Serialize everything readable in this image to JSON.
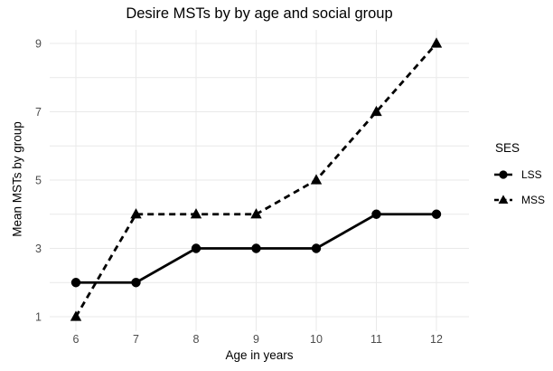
{
  "chart_data": {
    "type": "line",
    "title": "Desire MSTs by by age and social group",
    "xlabel": "Age in years",
    "ylabel": "Mean MSTs by group",
    "legend_title": "SES",
    "legend_position": "right",
    "x": [
      6,
      7,
      8,
      9,
      10,
      11,
      12
    ],
    "series": [
      {
        "name": "LSS",
        "values": [
          2,
          2,
          3,
          3,
          3,
          4,
          4
        ],
        "marker": "circle",
        "linestyle": "solid"
      },
      {
        "name": "MSS",
        "values": [
          1,
          4,
          4,
          4,
          5,
          7,
          9
        ],
        "marker": "triangle",
        "linestyle": "dashed"
      }
    ],
    "xticks": [
      6,
      7,
      8,
      9,
      10,
      11,
      12
    ],
    "yticks": [
      1,
      3,
      5,
      7,
      9
    ],
    "ygrid_values": [
      1,
      2,
      3,
      4,
      5,
      6,
      7,
      8,
      9
    ],
    "xlim": [
      5.56,
      12.54
    ],
    "ylim": [
      0.58,
      9.4
    ],
    "grid": true,
    "colors": {
      "series": "#000000",
      "grid": "#e9e9e9",
      "tick_label": "#4d4d4d",
      "text": "#000000",
      "background": "#ffffff"
    }
  }
}
